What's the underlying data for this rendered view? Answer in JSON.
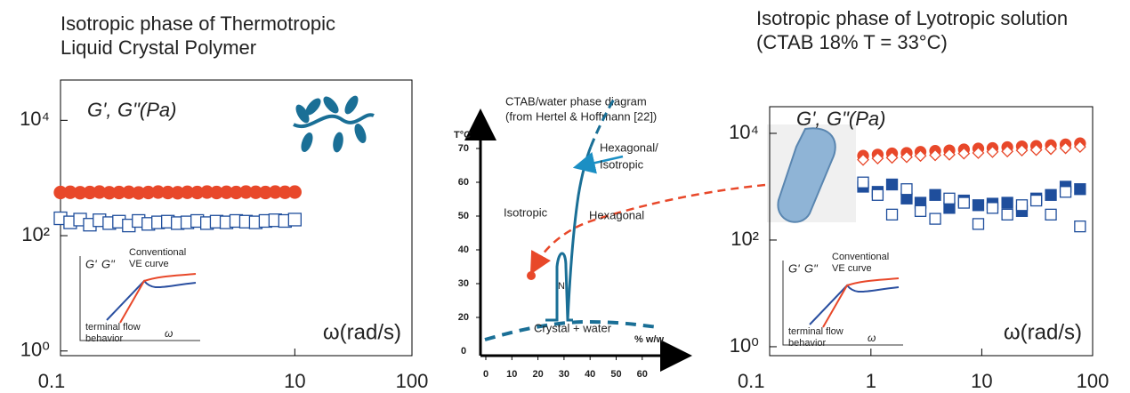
{
  "chart_data": [
    {
      "type": "scatter",
      "title": [
        "Isotropic phase of Thermotropic",
        "Liquid Crystal Polymer"
      ],
      "y_label": [
        "G',",
        "G\"(Pa)"
      ],
      "x_label": "ω(rad/s)",
      "log_x": true,
      "log_y": true,
      "xlim": [
        0.1,
        100
      ],
      "ylim": [
        0.83,
        50000
      ],
      "xticks": [
        0.1,
        10,
        100
      ],
      "yticks": [
        {
          "value": 1,
          "label": "10⁰"
        },
        {
          "value": 100,
          "label": "10²"
        },
        {
          "value": 10000,
          "label": "10⁴"
        }
      ],
      "x": [
        0.1,
        0.121,
        0.147,
        0.178,
        0.215,
        0.261,
        0.316,
        0.383,
        0.464,
        0.562,
        0.681,
        0.825,
        1,
        1.21,
        1.47,
        1.78,
        2.15,
        2.61,
        3.16,
        3.83,
        4.64,
        5.62,
        6.81,
        8.25,
        10
      ],
      "series": [
        {
          "color": "#e8482a",
          "marker": "circle",
          "filled": true,
          "values": [
            560,
            565,
            555,
            560,
            570,
            555,
            560,
            565,
            550,
            560,
            570,
            560,
            555,
            565,
            560,
            570,
            560,
            565,
            560,
            570,
            565,
            560,
            570,
            565,
            570
          ]
        },
        {
          "color": "#1f4e9c",
          "marker": "square",
          "filled": false,
          "values": [
            200,
            170,
            190,
            155,
            185,
            165,
            175,
            150,
            180,
            160,
            170,
            175,
            165,
            170,
            180,
            165,
            175,
            170,
            180,
            175,
            170,
            180,
            185,
            180,
            190
          ]
        }
      ],
      "inset": {
        "g1": "G'",
        "g2": "G\"",
        "curve": [
          "Conventional",
          "VE curve"
        ],
        "flow": [
          "terminal flow",
          "behavior"
        ],
        "omega": "ω"
      }
    },
    {
      "type": "scatter",
      "title": [
        "Isotropic phase of  Lyotropic solution",
        "(CTAB 18% T = 33°C)"
      ],
      "y_label": [
        "G',",
        "G\"(Pa)"
      ],
      "x_label": "ω(rad/s)",
      "log_x": true,
      "log_y": true,
      "xlim": [
        0.122,
        100
      ],
      "ylim": [
        0.68,
        31600
      ],
      "xticks": [
        0.1,
        1,
        10,
        100
      ],
      "yticks": [
        {
          "value": 1,
          "label": "10⁰"
        },
        {
          "value": 100,
          "label": "10²"
        },
        {
          "value": 10000,
          "label": "10⁴"
        }
      ],
      "x": [
        0.85,
        1.15,
        1.55,
        2.1,
        2.8,
        3.8,
        5.1,
        6.9,
        9.3,
        12.5,
        17,
        23,
        31,
        42,
        57,
        77
      ],
      "series": [
        {
          "color": "#e8482a",
          "marker": "circle",
          "filled": true,
          "values": [
            3800,
            4000,
            4200,
            4300,
            4500,
            4700,
            4800,
            5000,
            5200,
            5300,
            5500,
            5700,
            5800,
            6000,
            6200,
            6500
          ]
        },
        {
          "color": "#e8482a",
          "marker": "diamond",
          "filled": false,
          "values": [
            3200,
            3400,
            3500,
            3600,
            3800,
            3900,
            4000,
            4200,
            4300,
            4500,
            4600,
            4800,
            4900,
            5100,
            5300,
            5600
          ]
        },
        {
          "color": "#1f4e9c",
          "marker": "square",
          "filled": true,
          "values": [
            1000,
            800,
            1100,
            600,
            500,
            700,
            400,
            550,
            450,
            480,
            500,
            350,
            600,
            700,
            1000,
            900
          ]
        },
        {
          "color": "#1f4e9c",
          "marker": "square",
          "filled": false,
          "values": [
            1200,
            700,
            300,
            900,
            350,
            250,
            600,
            500,
            200,
            400,
            300,
            450,
            550,
            300,
            800,
            180
          ]
        }
      ],
      "inset": {
        "g1": "G'",
        "g2": "G\"",
        "curve": [
          "Conventional",
          "VE curve"
        ],
        "flow": [
          "terminal flow",
          "behavior"
        ],
        "omega": "ω"
      }
    }
  ],
  "diagram": {
    "title": [
      "CTAB/water phase diagram",
      "(from Hertel & Hoffmann [22])"
    ],
    "y_label": "T°C",
    "x_label": "% w/w",
    "origin_label": "0",
    "xticks": [
      0,
      10,
      20,
      30,
      40,
      50,
      60
    ],
    "yticks": [
      20,
      30,
      40,
      50,
      60,
      70
    ],
    "regions": {
      "hex_iso": [
        "Hexagonal/",
        "Isotropic"
      ],
      "isotropic": "Isotropic",
      "hexagonal": "Hexagonal",
      "n": "N",
      "crystal": "Crystal + water"
    }
  }
}
